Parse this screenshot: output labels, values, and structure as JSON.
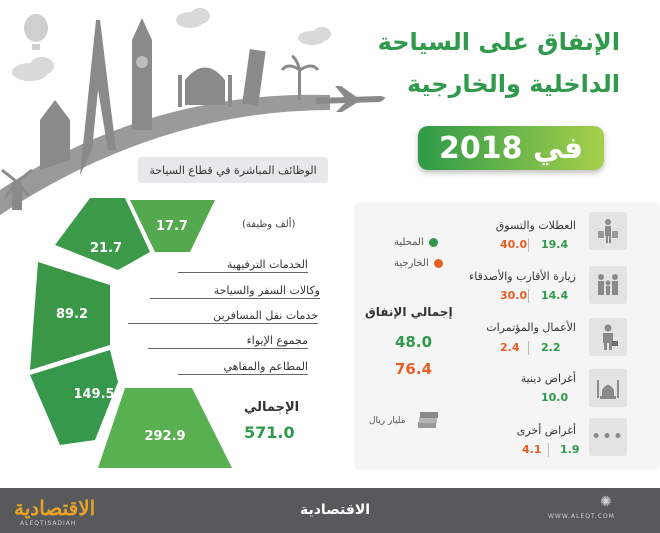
{
  "title": {
    "line1": "الإنفاق على السياحة",
    "line2": "الداخلية والخارجية",
    "year_badge": "في 2018"
  },
  "jobs": {
    "heading": "الوظائف المباشرة في قطاع السياحة",
    "unit": "(ألف وظيفة)",
    "items": [
      {
        "label": "الخدمات الترفيهية",
        "value": "17.7"
      },
      {
        "label": "وكالات السفر والسياحة",
        "value": "21.7"
      },
      {
        "label": "خدمات نقل المسافرين",
        "value": "89.2"
      },
      {
        "label": "مجموع الإيواء",
        "value": "149.5"
      },
      {
        "label": "المطاعم والمقاهي",
        "value": "292.9"
      }
    ],
    "total_label": "الإجمالي",
    "total_value": "571.0"
  },
  "spending": {
    "legend": [
      {
        "label": "المحلية",
        "color": "#2f9a4b"
      },
      {
        "label": "الخارجية",
        "color": "#e85f26"
      }
    ],
    "total_label": "إجمالي الإنفاق",
    "total_domestic": "48.0",
    "total_foreign": "76.4",
    "unit": "مليار ريال",
    "categories": [
      {
        "label": "العطلات والتسوق",
        "domestic": "19.4",
        "foreign": "40.0",
        "icon": "shopping-person-icon"
      },
      {
        "label": "زيارة الأقارب والأصدقاء",
        "domestic": "14.4",
        "foreign": "30.0",
        "icon": "family-icon"
      },
      {
        "label": "الأعمال والمؤتمرات",
        "domestic": "2.2",
        "foreign": "2.4",
        "icon": "businessman-icon"
      },
      {
        "label": "أغراض دينية",
        "domestic": "10.0",
        "foreign": "",
        "icon": "mosque-icon"
      },
      {
        "label": "أغراض أخرى",
        "domestic": "1.9",
        "foreign": "4.1",
        "icon": "ellipsis-icon"
      }
    ]
  },
  "footer": {
    "logo": "الاقتصادية",
    "logo_sub": "ALEQTISADIAH",
    "center": "الاقتصادية",
    "url": "WWW.ALEQT.COM"
  }
}
